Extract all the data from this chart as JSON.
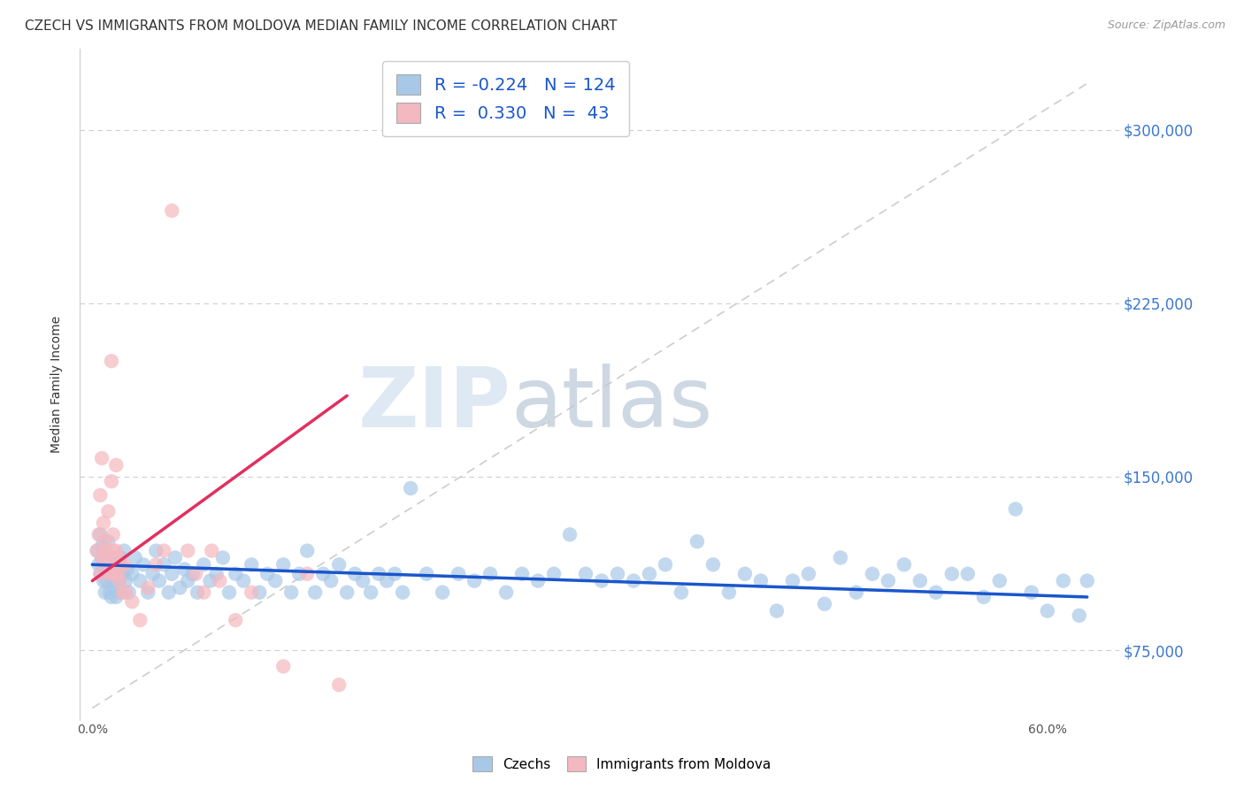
{
  "title": "CZECH VS IMMIGRANTS FROM MOLDOVA MEDIAN FAMILY INCOME CORRELATION CHART",
  "source": "Source: ZipAtlas.com",
  "xlabel_ticks": [
    "0.0%",
    "",
    "",
    "",
    "",
    "",
    "60.0%"
  ],
  "xlabel_vals": [
    0.0,
    0.1,
    0.2,
    0.3,
    0.4,
    0.5,
    0.6
  ],
  "ylabel": "Median Family Income",
  "ytick_labels": [
    "$75,000",
    "$150,000",
    "$225,000",
    "$300,000"
  ],
  "ytick_vals": [
    75000,
    150000,
    225000,
    300000
  ],
  "xlim": [
    -0.008,
    0.645
  ],
  "ylim": [
    45000,
    335000
  ],
  "watermark_zip": "ZIP",
  "watermark_atlas": "atlas",
  "legend_r_czech": "-0.224",
  "legend_n_czech": "124",
  "legend_r_moldova": "0.330",
  "legend_n_moldova": "43",
  "czech_color": "#a8c8e8",
  "moldova_color": "#f4b8c0",
  "czech_line_color": "#1a56cc",
  "moldova_line_color": "#e03060",
  "trendline_dashed_color": "#c8c8c8",
  "background_color": "#ffffff",
  "czech_points": [
    [
      0.003,
      118000
    ],
    [
      0.004,
      112000
    ],
    [
      0.005,
      125000
    ],
    [
      0.005,
      108000
    ],
    [
      0.006,
      115000
    ],
    [
      0.006,
      120000
    ],
    [
      0.007,
      105000
    ],
    [
      0.007,
      118000
    ],
    [
      0.008,
      100000
    ],
    [
      0.008,
      110000
    ],
    [
      0.009,
      115000
    ],
    [
      0.009,
      105000
    ],
    [
      0.01,
      122000
    ],
    [
      0.01,
      108000
    ],
    [
      0.011,
      112000
    ],
    [
      0.011,
      100000
    ],
    [
      0.012,
      98000
    ],
    [
      0.012,
      108000
    ],
    [
      0.013,
      105000
    ],
    [
      0.013,
      115000
    ],
    [
      0.014,
      110000
    ],
    [
      0.014,
      102000
    ],
    [
      0.015,
      108000
    ],
    [
      0.015,
      98000
    ],
    [
      0.016,
      112000
    ],
    [
      0.017,
      105000
    ],
    [
      0.018,
      100000
    ],
    [
      0.018,
      115000
    ],
    [
      0.019,
      108000
    ],
    [
      0.02,
      118000
    ],
    [
      0.021,
      105000
    ],
    [
      0.022,
      110000
    ],
    [
      0.023,
      100000
    ],
    [
      0.025,
      108000
    ],
    [
      0.027,
      115000
    ],
    [
      0.03,
      105000
    ],
    [
      0.032,
      112000
    ],
    [
      0.035,
      100000
    ],
    [
      0.038,
      108000
    ],
    [
      0.04,
      118000
    ],
    [
      0.042,
      105000
    ],
    [
      0.045,
      112000
    ],
    [
      0.048,
      100000
    ],
    [
      0.05,
      108000
    ],
    [
      0.052,
      115000
    ],
    [
      0.055,
      102000
    ],
    [
      0.058,
      110000
    ],
    [
      0.06,
      105000
    ],
    [
      0.063,
      108000
    ],
    [
      0.066,
      100000
    ],
    [
      0.07,
      112000
    ],
    [
      0.074,
      105000
    ],
    [
      0.078,
      108000
    ],
    [
      0.082,
      115000
    ],
    [
      0.086,
      100000
    ],
    [
      0.09,
      108000
    ],
    [
      0.095,
      105000
    ],
    [
      0.1,
      112000
    ],
    [
      0.105,
      100000
    ],
    [
      0.11,
      108000
    ],
    [
      0.115,
      105000
    ],
    [
      0.12,
      112000
    ],
    [
      0.125,
      100000
    ],
    [
      0.13,
      108000
    ],
    [
      0.135,
      118000
    ],
    [
      0.14,
      100000
    ],
    [
      0.145,
      108000
    ],
    [
      0.15,
      105000
    ],
    [
      0.155,
      112000
    ],
    [
      0.16,
      100000
    ],
    [
      0.165,
      108000
    ],
    [
      0.17,
      105000
    ],
    [
      0.175,
      100000
    ],
    [
      0.18,
      108000
    ],
    [
      0.185,
      105000
    ],
    [
      0.19,
      108000
    ],
    [
      0.195,
      100000
    ],
    [
      0.2,
      145000
    ],
    [
      0.21,
      108000
    ],
    [
      0.22,
      100000
    ],
    [
      0.23,
      108000
    ],
    [
      0.24,
      105000
    ],
    [
      0.25,
      108000
    ],
    [
      0.26,
      100000
    ],
    [
      0.27,
      108000
    ],
    [
      0.28,
      105000
    ],
    [
      0.29,
      108000
    ],
    [
      0.3,
      125000
    ],
    [
      0.31,
      108000
    ],
    [
      0.32,
      105000
    ],
    [
      0.33,
      108000
    ],
    [
      0.34,
      105000
    ],
    [
      0.35,
      108000
    ],
    [
      0.36,
      112000
    ],
    [
      0.37,
      100000
    ],
    [
      0.38,
      122000
    ],
    [
      0.39,
      112000
    ],
    [
      0.4,
      100000
    ],
    [
      0.41,
      108000
    ],
    [
      0.42,
      105000
    ],
    [
      0.43,
      92000
    ],
    [
      0.44,
      105000
    ],
    [
      0.45,
      108000
    ],
    [
      0.46,
      95000
    ],
    [
      0.47,
      115000
    ],
    [
      0.48,
      100000
    ],
    [
      0.49,
      108000
    ],
    [
      0.5,
      105000
    ],
    [
      0.51,
      112000
    ],
    [
      0.52,
      105000
    ],
    [
      0.53,
      100000
    ],
    [
      0.54,
      108000
    ],
    [
      0.55,
      108000
    ],
    [
      0.56,
      98000
    ],
    [
      0.57,
      105000
    ],
    [
      0.58,
      136000
    ],
    [
      0.59,
      100000
    ],
    [
      0.6,
      92000
    ],
    [
      0.61,
      105000
    ],
    [
      0.62,
      90000
    ],
    [
      0.625,
      105000
    ]
  ],
  "moldova_points": [
    [
      0.003,
      118000
    ],
    [
      0.004,
      125000
    ],
    [
      0.005,
      108000
    ],
    [
      0.005,
      142000
    ],
    [
      0.006,
      115000
    ],
    [
      0.006,
      158000
    ],
    [
      0.007,
      130000
    ],
    [
      0.008,
      122000
    ],
    [
      0.008,
      118000
    ],
    [
      0.009,
      115000
    ],
    [
      0.01,
      112000
    ],
    [
      0.01,
      135000
    ],
    [
      0.011,
      108000
    ],
    [
      0.012,
      148000
    ],
    [
      0.012,
      200000
    ],
    [
      0.013,
      118000
    ],
    [
      0.013,
      125000
    ],
    [
      0.014,
      108000
    ],
    [
      0.015,
      118000
    ],
    [
      0.015,
      155000
    ],
    [
      0.016,
      108000
    ],
    [
      0.016,
      115000
    ],
    [
      0.017,
      105000
    ],
    [
      0.018,
      112000
    ],
    [
      0.019,
      100000
    ],
    [
      0.02,
      112000
    ],
    [
      0.021,
      100000
    ],
    [
      0.025,
      96000
    ],
    [
      0.03,
      88000
    ],
    [
      0.035,
      102000
    ],
    [
      0.04,
      112000
    ],
    [
      0.045,
      118000
    ],
    [
      0.05,
      265000
    ],
    [
      0.06,
      118000
    ],
    [
      0.065,
      108000
    ],
    [
      0.07,
      100000
    ],
    [
      0.075,
      118000
    ],
    [
      0.08,
      105000
    ],
    [
      0.09,
      88000
    ],
    [
      0.1,
      100000
    ],
    [
      0.12,
      68000
    ],
    [
      0.135,
      108000
    ],
    [
      0.155,
      60000
    ]
  ],
  "czech_trend_x": [
    0.0,
    0.625
  ],
  "czech_trend_y": [
    112000,
    98000
  ],
  "moldova_trend_x": [
    0.0,
    0.16
  ],
  "moldova_trend_y": [
    105000,
    185000
  ],
  "diag_trend_x": [
    0.0,
    0.625
  ],
  "diag_trend_y": [
    50000,
    320000
  ],
  "grid_yticks": [
    75000,
    150000,
    225000,
    300000
  ],
  "grid_color": "#c8c8d8",
  "title_fontsize": 11,
  "label_fontsize": 10,
  "tick_fontsize": 10
}
